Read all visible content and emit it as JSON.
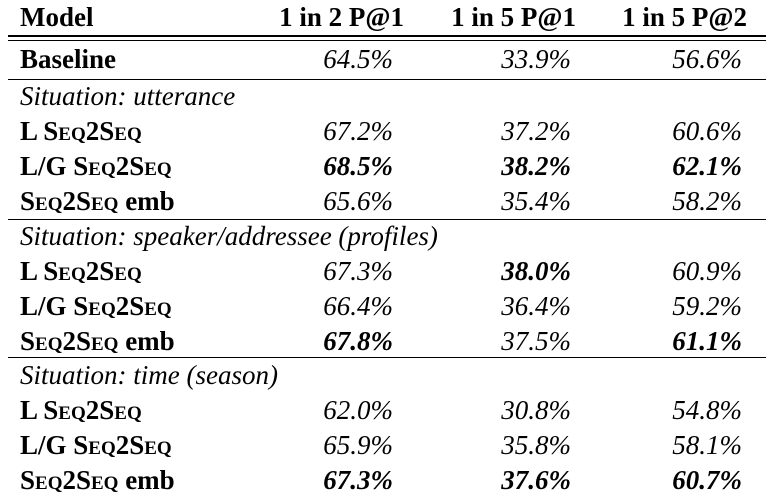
{
  "header": {
    "model": "Model",
    "col1": "1 in 2 P@1",
    "col2": "1 in 5 P@1",
    "col3": "1 in 5 P@2"
  },
  "baseline": {
    "model": "Baseline",
    "v1": "64.5%",
    "v2": "33.9%",
    "v3": "56.6%"
  },
  "sections": [
    {
      "title": "Situation: utterance",
      "rows": [
        {
          "prefix": "L ",
          "name": "Seq2Seq",
          "suffix": "",
          "v1": "67.2%",
          "v2": "37.2%",
          "v3": "60.6%",
          "bold": [
            false,
            false,
            false
          ]
        },
        {
          "prefix": "L/G ",
          "name": "Seq2Seq",
          "suffix": "",
          "v1": "68.5%",
          "v2": "38.2%",
          "v3": "62.1%",
          "bold": [
            true,
            true,
            true
          ]
        },
        {
          "prefix": "",
          "name": "Seq2Seq",
          "suffix": " emb",
          "v1": "65.6%",
          "v2": "35.4%",
          "v3": "58.2%",
          "bold": [
            false,
            false,
            false
          ]
        }
      ]
    },
    {
      "title": "Situation: speaker/addressee (profiles)",
      "rows": [
        {
          "prefix": "L ",
          "name": "Seq2Seq",
          "suffix": "",
          "v1": "67.3%",
          "v2": "38.0%",
          "v3": "60.9%",
          "bold": [
            false,
            true,
            false
          ]
        },
        {
          "prefix": "L/G ",
          "name": "Seq2Seq",
          "suffix": "",
          "v1": "66.4%",
          "v2": "36.4%",
          "v3": "59.2%",
          "bold": [
            false,
            false,
            false
          ]
        },
        {
          "prefix": "",
          "name": "Seq2Seq",
          "suffix": " emb",
          "v1": "67.8%",
          "v2": "37.5%",
          "v3": "61.1%",
          "bold": [
            true,
            false,
            true
          ]
        }
      ]
    },
    {
      "title": "Situation: time (season)",
      "rows": [
        {
          "prefix": "L ",
          "name": "Seq2Seq",
          "suffix": "",
          "v1": "62.0%",
          "v2": "30.8%",
          "v3": "54.8%",
          "bold": [
            false,
            false,
            false
          ]
        },
        {
          "prefix": "L/G ",
          "name": "Seq2Seq",
          "suffix": "",
          "v1": "65.9%",
          "v2": "35.8%",
          "v3": "58.1%",
          "bold": [
            false,
            false,
            false
          ]
        },
        {
          "prefix": "",
          "name": "Seq2Seq",
          "suffix": " emb",
          "v1": "67.3%",
          "v2": "37.6%",
          "v3": "60.7%",
          "bold": [
            true,
            true,
            true
          ]
        }
      ]
    }
  ]
}
